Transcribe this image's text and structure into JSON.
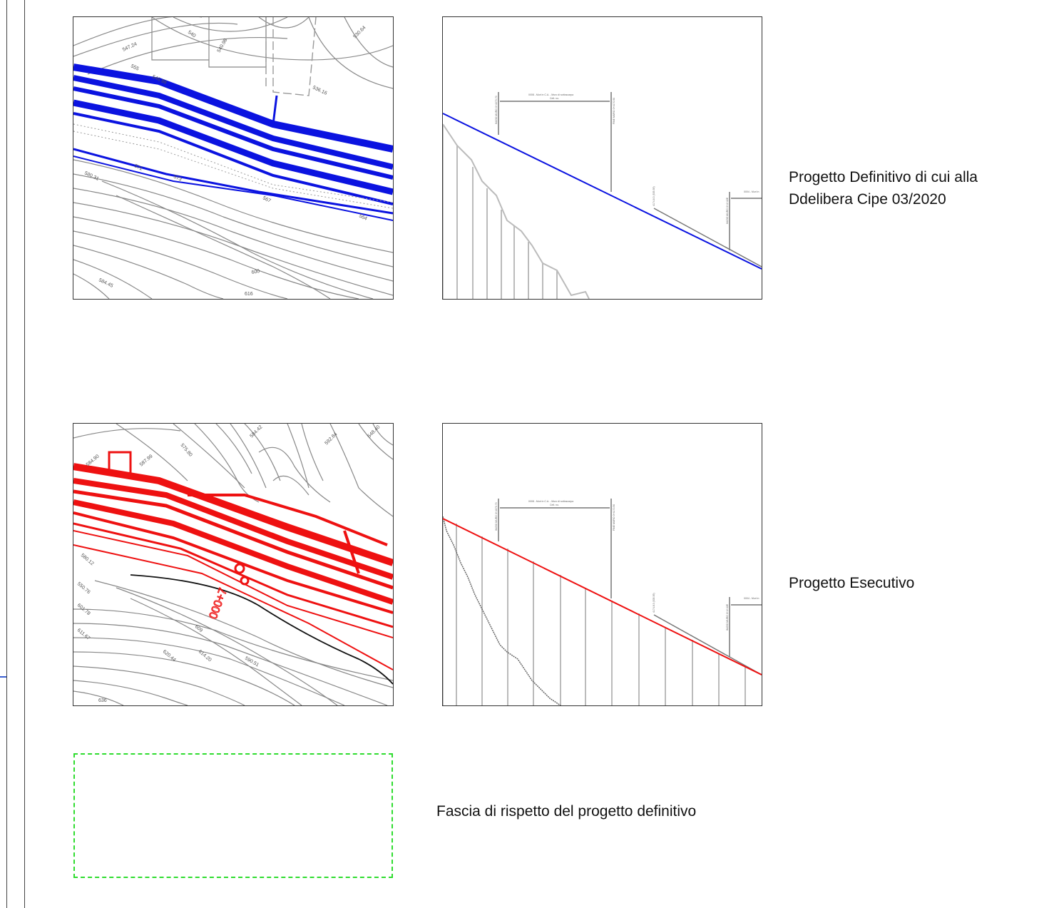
{
  "rows": [
    {
      "caption_line1": "Progetto Definitivo di cui alla",
      "caption_line2": "Ddelibera Cipe 03/2020",
      "color": "#0b13e0",
      "map_labels": [
        "540",
        "547.24",
        "540.98",
        "530.64",
        "555",
        "546.98",
        "536.16",
        "571",
        "573",
        "580.31",
        "567",
        "564",
        "600",
        "616",
        "584.45"
      ],
      "profile_labels": [
        "0008 - Muri in C.A. - Muro di sottoscarpa",
        "Celt. no.",
        "INIZIO MURO 0+4070.70",
        "FINE MURO 0+4170.50",
        "4174.8.3  (535.59)",
        "INIZIO MURO 0+4+42E",
        "0004 - Muri in"
      ]
    },
    {
      "caption_line1": "Progetto Esecutivo",
      "caption_line2": "",
      "color": "#ee1111",
      "map_labels": [
        "584.90",
        "587.99",
        "575.80",
        "584.42",
        "592.84",
        "548.40",
        "580.12",
        "550.76",
        "601.78",
        "611.67",
        "609",
        "614.20",
        "620.44",
        "636",
        "590.51",
        "000+7"
      ],
      "profile_labels": [
        "0008 - Muri in C.A. - Muro di sottoscarpa",
        "Celt. no.",
        "INIZIO MURO 0+4070.70",
        "FINE MURO 0+4170.50",
        "4174.8.3  (535.59)",
        "INIZIO MURO 0+4+42E",
        "0004 - Muri in"
      ]
    }
  ],
  "legend": {
    "caption": "Fascia di rispetto del progetto definitivo",
    "color": "#2edc2e"
  },
  "frame": {
    "left_marker_color": "#3a5fd0"
  }
}
